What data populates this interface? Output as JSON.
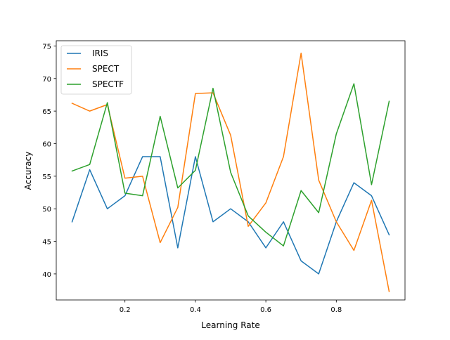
{
  "chart_data": {
    "type": "line",
    "title": "",
    "xlabel": "Learning Rate",
    "ylabel": "Accuracy",
    "xlim": [
      0.005,
      0.995
    ],
    "ylim": [
      36.0,
      75.8
    ],
    "xticks": [
      0.2,
      0.4,
      0.6,
      0.8
    ],
    "xtick_labels": [
      "0.2",
      "0.4",
      "0.6",
      "0.8"
    ],
    "yticks": [
      40,
      45,
      50,
      55,
      60,
      65,
      70,
      75
    ],
    "ytick_labels": [
      "40",
      "45",
      "50",
      "55",
      "60",
      "65",
      "70",
      "75"
    ],
    "grid": false,
    "legend": "top-left",
    "x": [
      0.05,
      0.1,
      0.15,
      0.2,
      0.25,
      0.3,
      0.35,
      0.4,
      0.45,
      0.5,
      0.55,
      0.6,
      0.65,
      0.7,
      0.75,
      0.8,
      0.85,
      0.9,
      0.95
    ],
    "series": [
      {
        "name": "IRIS",
        "color": "#1f77b4",
        "values": [
          48.0,
          56.0,
          50.0,
          52.0,
          58.0,
          58.0,
          44.0,
          58.0,
          48.0,
          50.0,
          48.0,
          44.0,
          48.0,
          42.0,
          40.0,
          48.0,
          54.0,
          52.0,
          46.0
        ]
      },
      {
        "name": "SPECT",
        "color": "#ff7f0e",
        "values": [
          66.2,
          65.0,
          66.0,
          54.7,
          55.0,
          44.8,
          50.2,
          67.7,
          67.8,
          61.3,
          47.3,
          50.9,
          58.0,
          73.9,
          54.4,
          48.0,
          43.6,
          51.3,
          37.3
        ]
      },
      {
        "name": "SPECTF",
        "color": "#2ca02c",
        "values": [
          55.8,
          56.8,
          66.3,
          52.4,
          52.0,
          64.2,
          53.2,
          55.9,
          68.5,
          55.6,
          48.9,
          46.4,
          44.3,
          52.8,
          49.4,
          61.5,
          69.2,
          53.7,
          66.5
        ]
      }
    ]
  }
}
